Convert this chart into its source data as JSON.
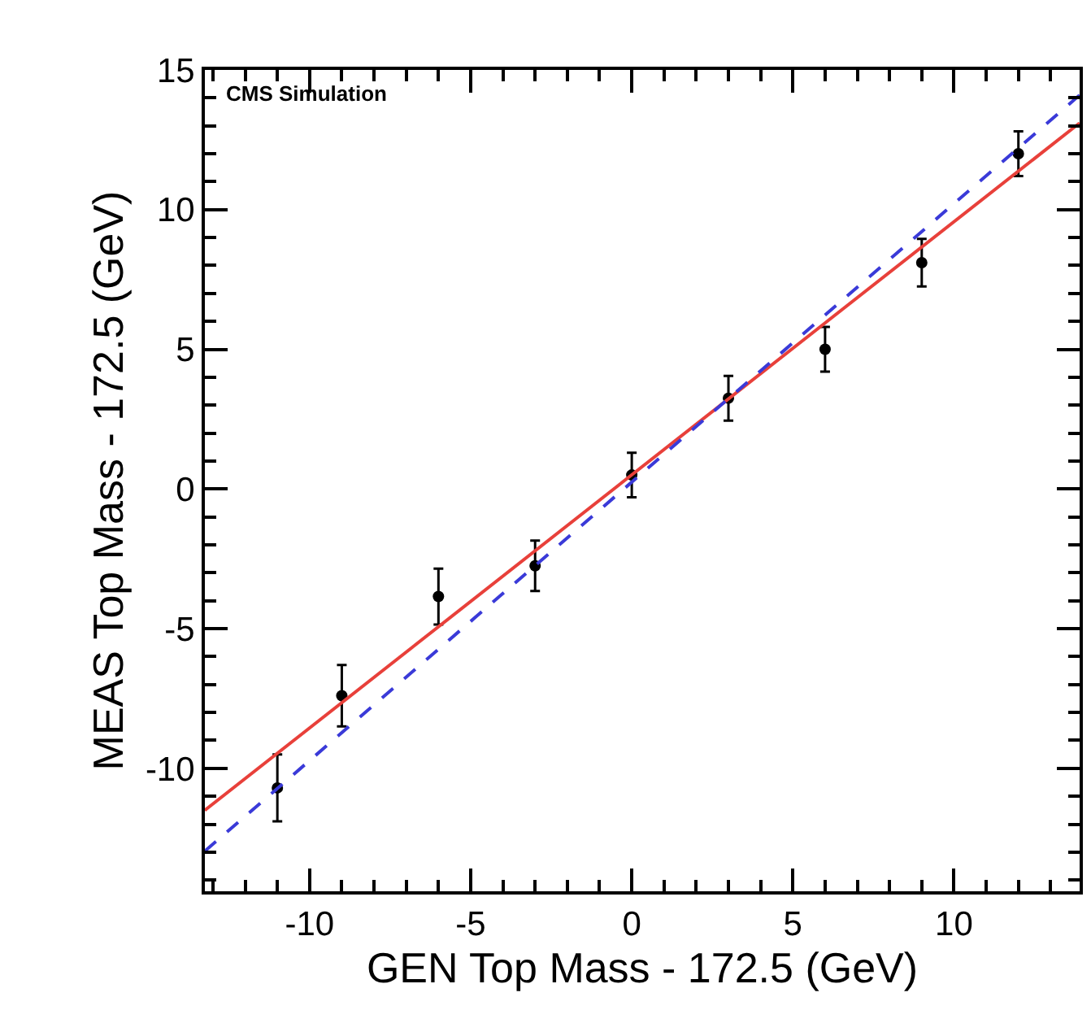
{
  "chart_data": {
    "type": "scatter",
    "xlabel": "GEN Top Mass - 172.5 (GeV)",
    "ylabel": "MEAS Top Mass - 172.5 (GeV)",
    "annotations": [
      "CMS Simulation"
    ],
    "xlim": [
      -13.25,
      13.9
    ],
    "xticks": [
      -10,
      -5,
      0,
      5,
      10
    ],
    "ylim": [
      -14.4,
      15
    ],
    "yticks": [
      -10,
      -5,
      0,
      5,
      10,
      15
    ],
    "series": [
      {
        "color": "#000000",
        "marker": "circle",
        "x": [
          -11,
          -9,
          -6,
          -3,
          0,
          3,
          6,
          9,
          12
        ],
        "values": [
          -10.7,
          -7.4,
          -3.85,
          -2.75,
          0.5,
          3.25,
          5.0,
          8.1,
          12.0
        ],
        "errors": [
          1.2,
          1.1,
          1.0,
          0.9,
          0.8,
          0.8,
          0.8,
          0.85,
          0.8
        ]
      },
      {
        "type": "line",
        "color": "#e8403a",
        "marker": "none",
        "line_style": "solid",
        "x": [
          -13.25,
          13.9
        ],
        "values": [
          -11.5,
          13.1
        ]
      },
      {
        "type": "line",
        "color": "#3a3ad8",
        "marker": "none",
        "line_style": "dashed",
        "x": [
          -13.25,
          13.9
        ],
        "values": [
          -12.96,
          14.1
        ]
      }
    ]
  }
}
